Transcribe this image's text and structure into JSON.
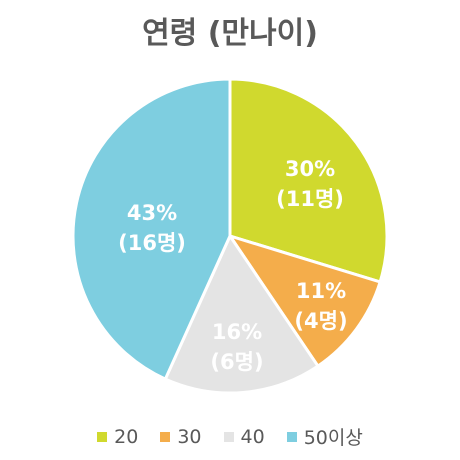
{
  "chart_data": {
    "type": "pie",
    "title": "연령 (만나이)",
    "categories": [
      "20",
      "30",
      "40",
      "50이상"
    ],
    "values": [
      11,
      4,
      6,
      16
    ],
    "percent_labels": [
      "30%",
      "11%",
      "16%",
      "43%"
    ],
    "count_labels": [
      "(11명)",
      "(4명)",
      "(6명)",
      "(16명)"
    ],
    "colors": [
      "#D0D92E",
      "#F4AD4B",
      "#E4E4E4",
      "#7ECEE0"
    ],
    "legend_position": "bottom"
  }
}
